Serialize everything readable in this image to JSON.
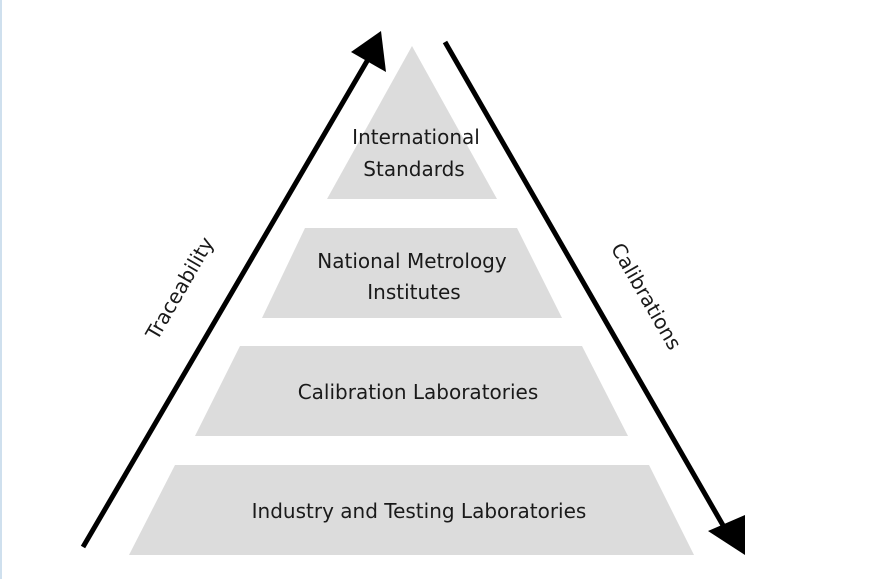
{
  "diagram": {
    "tiers": [
      {
        "lines": [
          "International",
          "Standards"
        ]
      },
      {
        "lines": [
          "National Metrology",
          "Institutes"
        ]
      },
      {
        "lines": [
          "Calibration Laboratories"
        ]
      },
      {
        "lines": [
          "Industry and Testing Laboratories"
        ]
      }
    ],
    "left_arrow_label": "Traceability",
    "right_arrow_label": "Calibrations",
    "colors": {
      "tier_fill": "#dcdcdc",
      "arrow": "#000000",
      "text": "#1a1a1a"
    }
  }
}
